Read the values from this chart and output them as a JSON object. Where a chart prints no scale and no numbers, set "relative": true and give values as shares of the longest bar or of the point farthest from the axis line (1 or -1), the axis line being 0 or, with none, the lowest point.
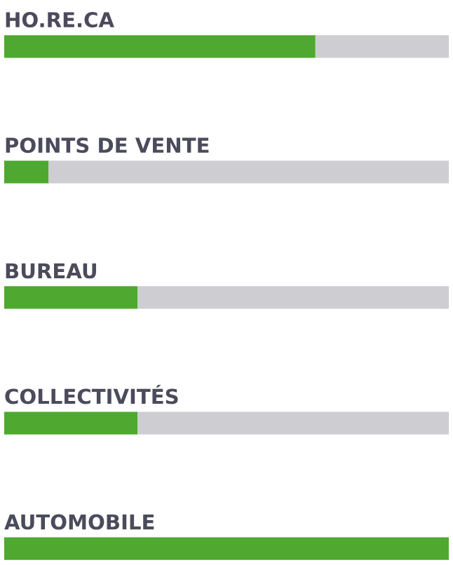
{
  "chart_data": {
    "type": "bar",
    "orientation": "horizontal",
    "stacked": true,
    "relative": true,
    "categories": [
      "HO.RE.CA",
      "POINTS DE VENTE",
      "BUREAU",
      "COLLECTIVITÉS",
      "AUTOMOBILE"
    ],
    "series": [
      {
        "color": "#4fa82f",
        "values": [
          0.7,
          0.1,
          0.3,
          0.3,
          1
        ]
      },
      {
        "color": "#cdcdd2",
        "values": [
          0.3,
          0.9,
          0.7,
          0.7,
          0
        ]
      }
    ],
    "legend": false
  }
}
